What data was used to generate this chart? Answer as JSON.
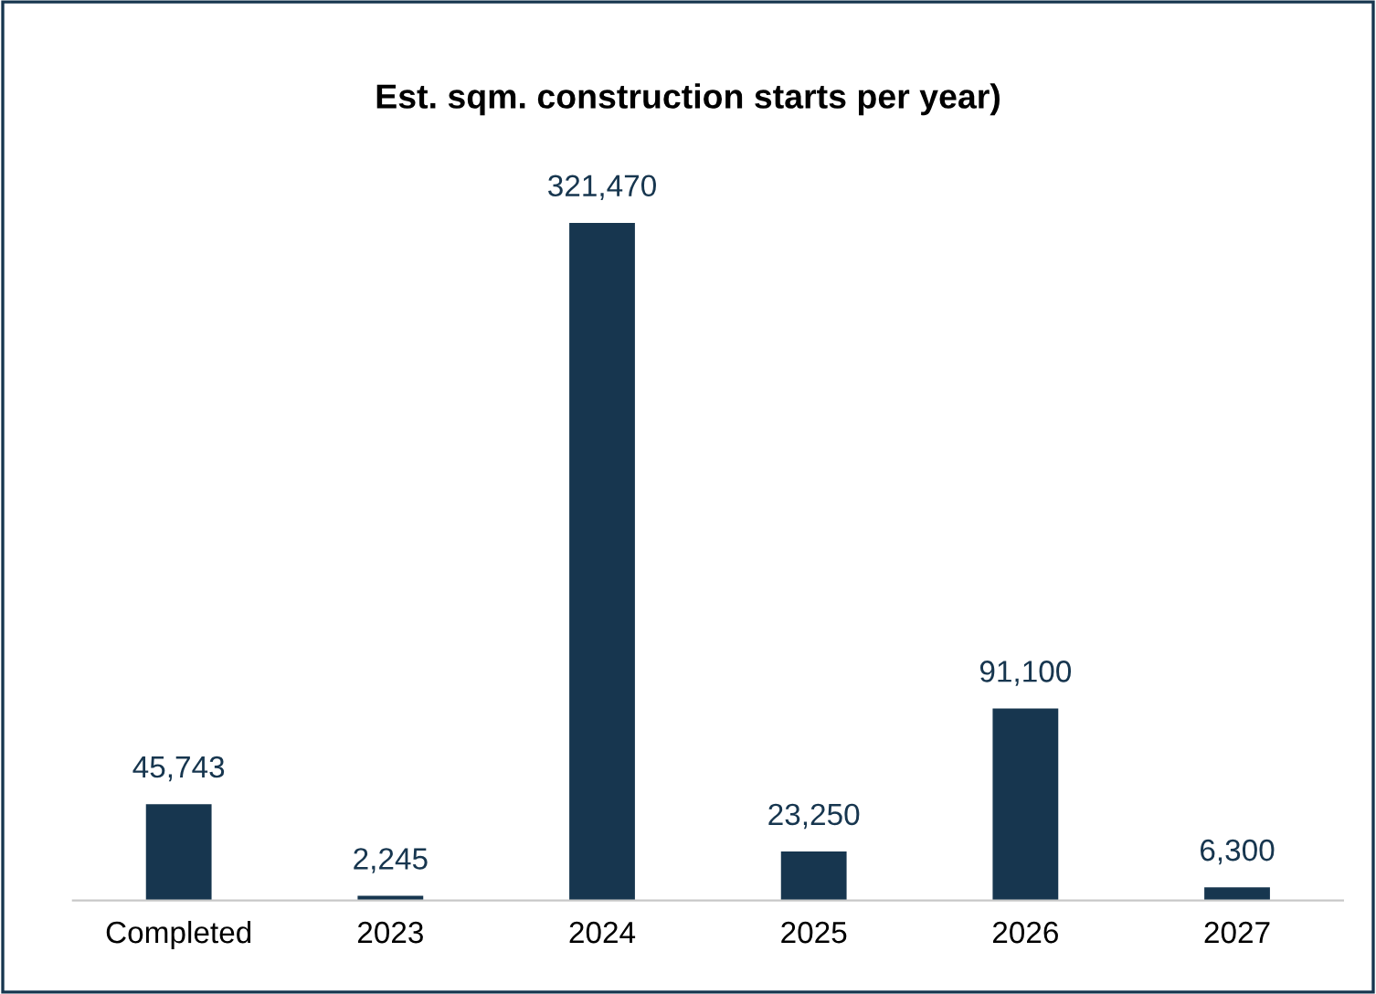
{
  "chart_data": {
    "type": "bar",
    "title": "Est. sqm. construction starts per year)",
    "categories": [
      "Completed",
      "2023",
      "2024",
      "2025",
      "2026",
      "2027"
    ],
    "values": [
      45743,
      2245,
      321470,
      23250,
      91100,
      6300
    ],
    "color": "#17364f",
    "value_labels": [
      "45,743",
      "2,245",
      "321,470",
      "23,250",
      "91,100",
      "6,300"
    ],
    "grid": false,
    "legend": false
  }
}
